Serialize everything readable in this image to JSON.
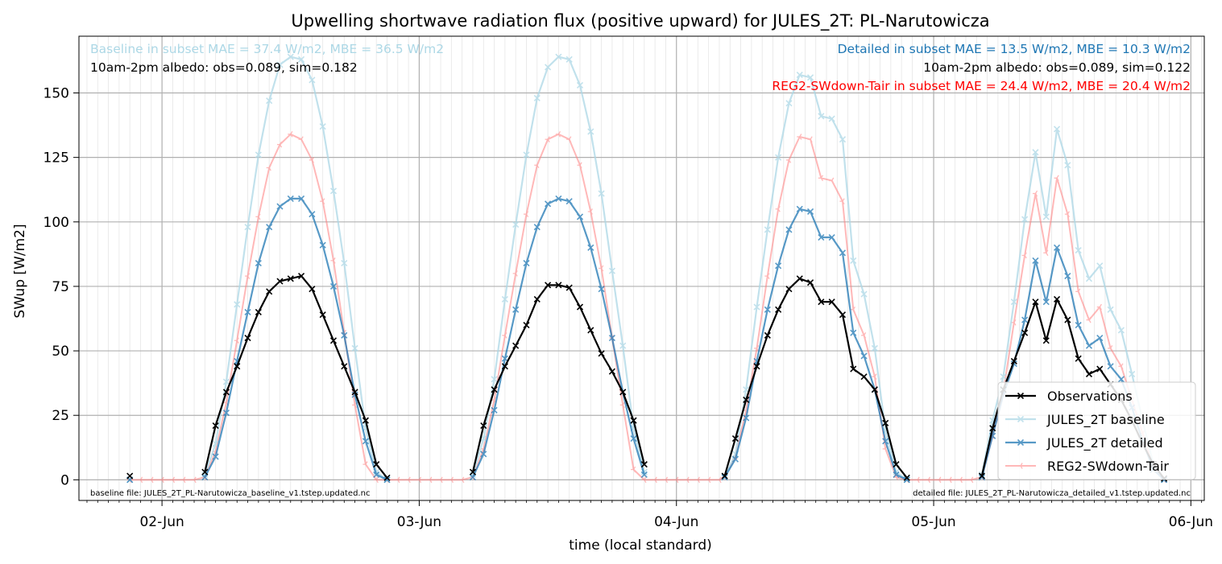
{
  "chart_data": {
    "type": "line",
    "title": "Upwelling shortwave radiation flux (positive upward) for JULES_2T: PL-Narutowicza",
    "xlabel": "time (local standard)",
    "ylabel": "SWup [W/m2]",
    "x_unit": "hours",
    "x_ticks": [
      {
        "x": 24,
        "label": "02-Jun"
      },
      {
        "x": 48,
        "label": "03-Jun"
      },
      {
        "x": 72,
        "label": "04-Jun"
      },
      {
        "x": 96,
        "label": "05-Jun"
      },
      {
        "x": 120,
        "label": "06-Jun"
      }
    ],
    "xlim": [
      16.25,
      121.25
    ],
    "ylim": [
      -8,
      172
    ],
    "y_ticks": [
      0,
      25,
      50,
      75,
      100,
      125,
      150
    ],
    "grid": true,
    "legend_position": "lower right",
    "annotations": {
      "baseline_stats": "Baseline in subset MAE = 37.4 W/m2, MBE = 36.5 W/m2",
      "baseline_albedo": "10am-2pm albedo: obs=0.089, sim=0.182",
      "detailed_stats": "Detailed in subset MAE = 13.5 W/m2, MBE = 10.3 W/m2",
      "detailed_albedo": "10am-2pm albedo: obs=0.089, sim=0.122",
      "reg2_stats": "REG2-SWdown-Tair in subset MAE = 24.4 W/m2, MBE = 20.4 W/m2",
      "baseline_file": "baseline file: JULES_2T_PL-Narutowicza_baseline_v1.tstep.updated.nc",
      "detailed_file": "detailed file: JULES_2T_PL-Narutowicza_detailed_v1.tstep.updated.nc"
    },
    "series": [
      {
        "name": "Observations",
        "color": "#000000",
        "x": [
          21,
          28,
          29,
          30,
          31,
          32,
          33,
          34,
          35,
          36,
          37,
          38,
          39,
          40,
          41,
          42,
          43,
          44,
          45,
          53,
          54,
          55,
          56,
          57,
          58,
          59,
          60,
          61,
          62,
          63,
          64,
          65,
          66,
          67,
          68,
          69,
          76.5,
          77.5,
          78.5,
          79.5,
          80.5,
          81.5,
          82.5,
          83.5,
          84.5,
          85.5,
          86.5,
          87.5,
          88.5,
          89.5,
          90.5,
          91.5,
          92.5,
          93.5,
          100.5,
          101.5,
          102.5,
          103.5,
          104.5,
          105.5,
          106.5,
          107.5,
          108.5,
          109.5,
          110.5,
          111.5,
          112.5,
          113.5,
          114.5,
          115.5,
          116.5,
          117.5
        ],
        "y": [
          1.5,
          3,
          21,
          34,
          44,
          55,
          65,
          73,
          77,
          78,
          79,
          74,
          64,
          54,
          44,
          34,
          23,
          6,
          0.8,
          3,
          21,
          35,
          44,
          52,
          60,
          70,
          75.5,
          75.5,
          74.5,
          67,
          58,
          49,
          42,
          34,
          23,
          6,
          1.5,
          16,
          31,
          44,
          56,
          66,
          74,
          78,
          76.5,
          69,
          69,
          64,
          43,
          40,
          35,
          22,
          6,
          0.8,
          1.5,
          20,
          35,
          46,
          57,
          69,
          54,
          70,
          62,
          47,
          41,
          43,
          37,
          31,
          23,
          14,
          6,
          0.5
        ]
      },
      {
        "name": "JULES_2T baseline",
        "color": "#add8e6",
        "x": [
          21,
          28,
          29,
          30,
          31,
          32,
          33,
          34,
          35,
          36,
          37,
          38,
          39,
          40,
          41,
          42,
          43,
          44,
          45,
          53,
          54,
          55,
          56,
          57,
          58,
          59,
          60,
          61,
          62,
          63,
          64,
          65,
          66,
          67,
          68,
          69,
          76.5,
          77.5,
          78.5,
          79.5,
          80.5,
          81.5,
          82.5,
          83.5,
          84.5,
          85.5,
          86.5,
          87.5,
          88.5,
          89.5,
          90.5,
          91.5,
          92.5,
          93.5,
          100.5,
          101.5,
          102.5,
          103.5,
          104.5,
          105.5,
          106.5,
          107.5,
          108.5,
          109.5,
          110.5,
          111.5,
          112.5,
          113.5,
          114.5,
          115.5,
          116.5,
          117.5
        ],
        "y": [
          0,
          2,
          14,
          38,
          68,
          98,
          126,
          147,
          161,
          164,
          163,
          155,
          137,
          112,
          84,
          51,
          20,
          3,
          0,
          2,
          16,
          39,
          70,
          99,
          126,
          148,
          160,
          164,
          163,
          153,
          135,
          111,
          81,
          52,
          20,
          3,
          1,
          10,
          35,
          67,
          97,
          125,
          146,
          157,
          156,
          141,
          140,
          132,
          85,
          72,
          51,
          19,
          3,
          0,
          2,
          23,
          40,
          69,
          101,
          127,
          102,
          136,
          122,
          89,
          78,
          83,
          66,
          58,
          41,
          23,
          6,
          0
        ]
      },
      {
        "name": "JULES_2T detailed",
        "color": "#1f77b4",
        "x": [
          21,
          28,
          29,
          30,
          31,
          32,
          33,
          34,
          35,
          36,
          37,
          38,
          39,
          40,
          41,
          42,
          43,
          44,
          45,
          53,
          54,
          55,
          56,
          57,
          58,
          59,
          60,
          61,
          62,
          63,
          64,
          65,
          66,
          67,
          68,
          69,
          76.5,
          77.5,
          78.5,
          79.5,
          80.5,
          81.5,
          82.5,
          83.5,
          84.5,
          85.5,
          86.5,
          87.5,
          88.5,
          89.5,
          90.5,
          91.5,
          92.5,
          93.5,
          100.5,
          101.5,
          102.5,
          103.5,
          104.5,
          105.5,
          106.5,
          107.5,
          108.5,
          109.5,
          110.5,
          111.5,
          112.5,
          113.5,
          114.5,
          115.5,
          116.5,
          117.5
        ],
        "y": [
          0,
          1,
          9,
          26,
          46,
          65,
          84,
          98,
          106,
          109,
          109,
          103,
          91,
          75,
          56,
          33,
          15,
          2,
          0,
          1,
          10,
          27,
          47,
          66,
          84,
          98,
          107,
          109,
          108,
          102,
          90,
          74,
          55,
          34,
          16,
          2,
          1,
          8,
          24,
          46,
          66,
          83,
          97,
          105,
          104,
          94,
          94,
          88,
          57,
          48,
          35,
          15,
          2,
          0,
          1,
          17,
          33,
          45,
          62,
          85,
          69,
          90,
          79,
          60,
          52,
          55,
          44,
          39,
          28,
          15,
          4,
          0
        ]
      },
      {
        "name": "REG2-SWdown-Tair",
        "color": "#ff7f7f",
        "x": [
          21,
          22,
          23,
          24,
          25,
          26,
          27,
          28,
          29,
          30,
          31,
          32,
          33,
          34,
          35,
          36,
          37,
          38,
          39,
          40,
          41,
          42,
          43,
          44,
          45,
          46,
          47,
          48,
          49,
          50,
          51,
          52,
          53,
          54,
          55,
          56,
          57,
          58,
          59,
          60,
          61,
          62,
          63,
          64,
          65,
          66,
          67,
          68,
          69,
          70,
          71,
          72,
          73,
          74,
          75,
          76,
          76.5,
          77.5,
          78.5,
          79.5,
          80.5,
          81.5,
          82.5,
          83.5,
          84.5,
          85.5,
          86.5,
          87.5,
          88.5,
          89.5,
          90.5,
          91.5,
          92.5,
          93.5,
          94.5,
          95.5,
          96.5,
          97.5,
          98.5,
          99.5,
          100.5,
          101.5,
          102.5,
          103.5,
          104.5,
          105.5,
          106.5,
          107.5,
          108.5,
          109.5,
          110.5,
          111.5,
          112.5,
          113.5,
          114.5,
          115.5,
          116.5,
          117.5
        ],
        "y": [
          0,
          0,
          0,
          0,
          0,
          0,
          0,
          1,
          11,
          30,
          54,
          79,
          102,
          121,
          130,
          134,
          132,
          124,
          108,
          85,
          57,
          29,
          6,
          0,
          0,
          0,
          0,
          0,
          0,
          0,
          0,
          0,
          1,
          12,
          31,
          56,
          80,
          103,
          122,
          132,
          134,
          132,
          122,
          104,
          82,
          55,
          29,
          4,
          0,
          0,
          0,
          0,
          0,
          0,
          0,
          0,
          1,
          9,
          27,
          51,
          79,
          105,
          124,
          133,
          132,
          117,
          116,
          108,
          66,
          56,
          40,
          12,
          1,
          0,
          0,
          0,
          0,
          0,
          0,
          0,
          1,
          17,
          34,
          61,
          87,
          111,
          88,
          117,
          103,
          73,
          62,
          67,
          51,
          44,
          31,
          18,
          5,
          0
        ]
      }
    ]
  }
}
